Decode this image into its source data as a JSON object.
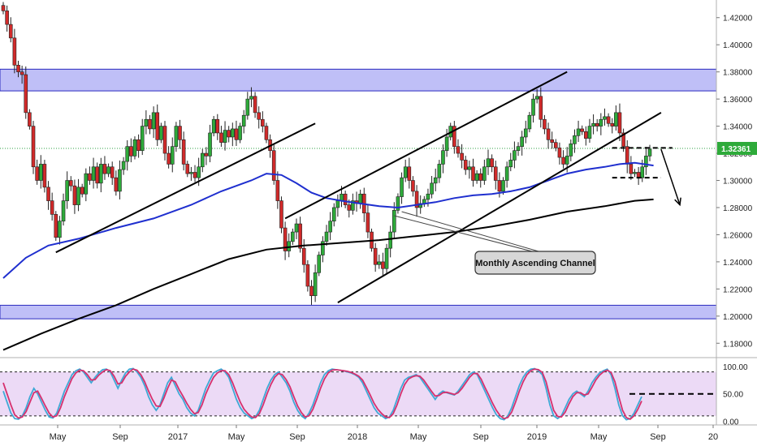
{
  "chart_data": [
    {
      "type": "candlestick",
      "title": "",
      "y_ticks": [
        "1.42000",
        "1.40000",
        "1.38000",
        "1.36000",
        "1.34000",
        "1.32000",
        "1.30000",
        "1.28000",
        "1.26000",
        "1.24000",
        "1.22000",
        "1.20000",
        "1.18000"
      ],
      "ylim": [
        1.17,
        1.433
      ],
      "x_ticks": [
        "May",
        "Sep",
        "2017",
        "May",
        "Sep",
        "2018",
        "May",
        "Sep",
        "2019",
        "May",
        "Sep",
        "20"
      ],
      "last_price": 1.32361,
      "last_price_label": "1.32361",
      "zones": [
        {
          "name": "resistance-zone",
          "from": 1.366,
          "to": 1.382
        },
        {
          "name": "support-zone",
          "from": 1.198,
          "to": 1.208
        }
      ],
      "annotation": "Monthly Ascending Channel",
      "closes": [
        1.425,
        1.415,
        1.405,
        1.385,
        1.38,
        1.378,
        1.35,
        1.34,
        1.31,
        1.3,
        1.312,
        1.295,
        1.285,
        1.275,
        1.258,
        1.27,
        1.285,
        1.3,
        1.296,
        1.282,
        1.295,
        1.29,
        1.305,
        1.3,
        1.31,
        1.298,
        1.312,
        1.305,
        1.31,
        1.302,
        1.292,
        1.308,
        1.314,
        1.325,
        1.318,
        1.33,
        1.322,
        1.34,
        1.345,
        1.338,
        1.35,
        1.33,
        1.34,
        1.32,
        1.312,
        1.325,
        1.34,
        1.33,
        1.312,
        1.305,
        1.306,
        1.302,
        1.31,
        1.32,
        1.318,
        1.335,
        1.345,
        1.335,
        1.328,
        1.337,
        1.332,
        1.338,
        1.33,
        1.34,
        1.348,
        1.36,
        1.362,
        1.35,
        1.345,
        1.34,
        1.33,
        1.322,
        1.3,
        1.285,
        1.265,
        1.248,
        1.255,
        1.262,
        1.268,
        1.25,
        1.238,
        1.222,
        1.215,
        1.232,
        1.245,
        1.255,
        1.262,
        1.27,
        1.28,
        1.285,
        1.29,
        1.282,
        1.278,
        1.285,
        1.283,
        1.29,
        1.276,
        1.262,
        1.25,
        1.238,
        1.24,
        1.235,
        1.25,
        1.262,
        1.278,
        1.288,
        1.302,
        1.31,
        1.3,
        1.292,
        1.28,
        1.283,
        1.286,
        1.29,
        1.298,
        1.302,
        1.312,
        1.322,
        1.332,
        1.34,
        1.325,
        1.32,
        1.315,
        1.308,
        1.31,
        1.3,
        1.305,
        1.3,
        1.31,
        1.316,
        1.31,
        1.3,
        1.292,
        1.3,
        1.31,
        1.315,
        1.322,
        1.325,
        1.332,
        1.338,
        1.348,
        1.36,
        1.362,
        1.345,
        1.338,
        1.33,
        1.328,
        1.324,
        1.317,
        1.312,
        1.318,
        1.327,
        1.333,
        1.338,
        1.336,
        1.331,
        1.34,
        1.342,
        1.34,
        1.345,
        1.347,
        1.342,
        1.34,
        1.35,
        1.335,
        1.325,
        1.312,
        1.305,
        1.306,
        1.302,
        1.31,
        1.318,
        1.323
      ],
      "series": [
        {
          "name": "",
          "color": "#1f2fcf",
          "points": [
            [
              0,
              1.228
            ],
            [
              6,
              1.243
            ],
            [
              12,
              1.252
            ],
            [
              20,
              1.257
            ],
            [
              30,
              1.265
            ],
            [
              40,
              1.272
            ],
            [
              50,
              1.282
            ],
            [
              58,
              1.292
            ],
            [
              66,
              1.3
            ],
            [
              70,
              1.305
            ],
            [
              74,
              1.304
            ],
            [
              78,
              1.298
            ],
            [
              82,
              1.291
            ],
            [
              86,
              1.287
            ],
            [
              90,
              1.285
            ],
            [
              95,
              1.283
            ],
            [
              100,
              1.281
            ],
            [
              105,
              1.28
            ],
            [
              110,
              1.282
            ],
            [
              115,
              1.284
            ],
            [
              120,
              1.287
            ],
            [
              125,
              1.289
            ],
            [
              130,
              1.29
            ],
            [
              135,
              1.292
            ],
            [
              140,
              1.295
            ],
            [
              145,
              1.3
            ],
            [
              150,
              1.305
            ],
            [
              155,
              1.308
            ],
            [
              160,
              1.31
            ],
            [
              164,
              1.312
            ],
            [
              168,
              1.313
            ],
            [
              173,
              1.311
            ]
          ]
        },
        {
          "name": "",
          "color": "#000000",
          "points": [
            [
              0,
              1.175
            ],
            [
              10,
              1.187
            ],
            [
              20,
              1.198
            ],
            [
              30,
              1.208
            ],
            [
              40,
              1.22
            ],
            [
              50,
              1.231
            ],
            [
              60,
              1.242
            ],
            [
              70,
              1.249
            ],
            [
              80,
              1.252
            ],
            [
              90,
              1.254
            ],
            [
              100,
              1.256
            ],
            [
              110,
              1.259
            ],
            [
              120,
              1.262
            ],
            [
              130,
              1.266
            ],
            [
              140,
              1.271
            ],
            [
              150,
              1.277
            ],
            [
              160,
              1.281
            ],
            [
              168,
              1.285
            ],
            [
              173,
              1.286
            ]
          ]
        }
      ],
      "trendlines": [
        {
          "name": "rising-trendline-2016",
          "points": [
            [
              14,
              1.247
            ],
            [
              83,
              1.342
            ]
          ]
        },
        {
          "name": "channel-upper-line",
          "points": [
            [
              75,
              1.272
            ],
            [
              150,
              1.38
            ]
          ]
        },
        {
          "name": "channel-lower-line",
          "points": [
            [
              89,
              1.21
            ],
            [
              175,
              1.35
            ]
          ]
        }
      ],
      "dashed_levels": [
        {
          "name": "range-top-dash",
          "value": 1.324,
          "from": 162,
          "to": 178
        },
        {
          "name": "range-bottom-dash",
          "value": 1.302,
          "from": 162,
          "to": 175
        }
      ],
      "projection": {
        "name": "bearish-projection-arrow",
        "points": [
          [
            175,
            1.323
          ],
          [
            180,
            1.282
          ]
        ]
      }
    },
    {
      "type": "line",
      "title": "",
      "y_ticks": [
        "100.00",
        "50.00",
        "0.00"
      ],
      "ylim": [
        -5,
        110
      ],
      "upper_band": 90,
      "lower_band": 10,
      "dashed_level": 50,
      "series": [
        {
          "name": "",
          "color": "#3fa9d6",
          "values": [
            55,
            35,
            15,
            5,
            4,
            10,
            25,
            45,
            60,
            50,
            35,
            20,
            8,
            6,
            15,
            35,
            55,
            70,
            85,
            92,
            95,
            90,
            80,
            70,
            80,
            88,
            94,
            95,
            90,
            75,
            60,
            75,
            88,
            95,
            96,
            90,
            80,
            65,
            45,
            30,
            20,
            30,
            50,
            70,
            80,
            65,
            50,
            40,
            25,
            15,
            10,
            20,
            40,
            60,
            75,
            88,
            92,
            95,
            90,
            80,
            60,
            40,
            25,
            15,
            10,
            5,
            8,
            20,
            40,
            60,
            75,
            85,
            90,
            80,
            70,
            55,
            35,
            20,
            10,
            5,
            15,
            30,
            50,
            70,
            85,
            92,
            95,
            94,
            93,
            92,
            90,
            88,
            85,
            80,
            70,
            55,
            40,
            25,
            15,
            10,
            5,
            8,
            20,
            40,
            60,
            75,
            80,
            82,
            85,
            80,
            70,
            60,
            50,
            40,
            50,
            55,
            52,
            50,
            48,
            55,
            65,
            75,
            85,
            90,
            85,
            70,
            55,
            40,
            25,
            12,
            5,
            3,
            10,
            25,
            45,
            65,
            80,
            90,
            95,
            96,
            92,
            85,
            60,
            30,
            10,
            5,
            10,
            25,
            40,
            50,
            55,
            50,
            45,
            55,
            70,
            80,
            88,
            92,
            95,
            85,
            60,
            30,
            10,
            3,
            5,
            15,
            30,
            45
          ]
        },
        {
          "name": "",
          "color": "#d6306e",
          "values": [
            70,
            50,
            30,
            12,
            6,
            8,
            18,
            35,
            52,
            55,
            42,
            28,
            15,
            8,
            10,
            25,
            45,
            62,
            78,
            88,
            93,
            92,
            85,
            75,
            76,
            84,
            90,
            94,
            92,
            82,
            68,
            70,
            82,
            90,
            95,
            93,
            85,
            72,
            55,
            40,
            28,
            27,
            42,
            60,
            75,
            72,
            58,
            46,
            33,
            22,
            14,
            16,
            30,
            50,
            66,
            80,
            88,
            92,
            92,
            85,
            70,
            52,
            35,
            22,
            14,
            8,
            7,
            14,
            30,
            50,
            67,
            80,
            87,
            85,
            76,
            63,
            45,
            28,
            16,
            8,
            10,
            22,
            40,
            60,
            77,
            88,
            93,
            94,
            93,
            92,
            91,
            89,
            86,
            82,
            75,
            62,
            48,
            33,
            22,
            14,
            8,
            7,
            14,
            30,
            50,
            67,
            77,
            81,
            83,
            82,
            75,
            65,
            55,
            46,
            47,
            52,
            53,
            51,
            49,
            52,
            60,
            70,
            80,
            87,
            87,
            77,
            62,
            48,
            33,
            20,
            10,
            5,
            7,
            17,
            35,
            55,
            72,
            85,
            92,
            95,
            94,
            89,
            72,
            45,
            20,
            9,
            8,
            17,
            32,
            45,
            52,
            52,
            48,
            50,
            62,
            75,
            84,
            90,
            93,
            89,
            72,
            45,
            20,
            7,
            4,
            10,
            22,
            37
          ]
        }
      ]
    }
  ]
}
